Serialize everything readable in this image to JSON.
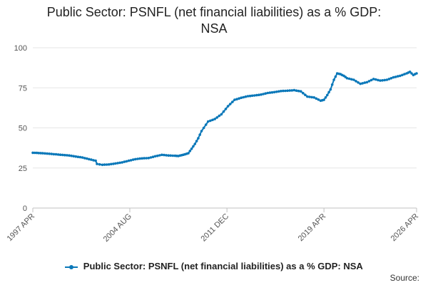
{
  "title_line1": "Public Sector: PSNFL (net financial liabilities) as a % GDP:",
  "title_line2": "NSA",
  "source_label": "Source:",
  "colors": {
    "series": "#0b78b9",
    "grid": "#e6e6e6",
    "axis": "#c0c0c0"
  },
  "chart_data": {
    "type": "line",
    "title": "Public Sector: PSNFL (net financial liabilities) as a % GDP: NSA",
    "xlabel": "",
    "ylabel": "",
    "ylim": [
      0,
      100
    ],
    "yticks": [
      0,
      25,
      50,
      75,
      100
    ],
    "xlim": [
      1997.25,
      2026.25
    ],
    "xticks": [
      {
        "x": 1997.25,
        "label": "1997 APR"
      },
      {
        "x": 2004.58,
        "label": "2004 AUG"
      },
      {
        "x": 2011.92,
        "label": "2011 DEC"
      },
      {
        "x": 2019.25,
        "label": "2019 APR"
      },
      {
        "x": 2026.25,
        "label": "2026 APR"
      }
    ],
    "grid": true,
    "legend": "bottom",
    "series": [
      {
        "name": "Public Sector: PSNFL (net financial liabilities) as a % GDP: NSA",
        "x": [
          1997.25,
          1998.0,
          1999.0,
          2000.0,
          2001.0,
          2002.0,
          2002.1,
          2002.5,
          2003.0,
          2003.5,
          2004.0,
          2004.5,
          2005.0,
          2005.5,
          2006.0,
          2006.5,
          2007.0,
          2007.5,
          2008.0,
          2008.25,
          2008.5,
          2008.75,
          2009.0,
          2009.25,
          2009.5,
          2009.75,
          2010.0,
          2010.5,
          2011.0,
          2011.5,
          2012.0,
          2012.5,
          2013.0,
          2013.5,
          2014.0,
          2014.5,
          2015.0,
          2015.5,
          2016.0,
          2016.5,
          2017.0,
          2017.5,
          2018.0,
          2018.5,
          2019.0,
          2019.25,
          2019.5,
          2019.75,
          2020.0,
          2020.25,
          2020.5,
          2020.75,
          2021.0,
          2021.5,
          2022.0,
          2022.5,
          2023.0,
          2023.5,
          2024.0,
          2024.5,
          2025.0,
          2025.5,
          2025.75,
          2026.0,
          2026.25
        ],
        "values": [
          34.5,
          34.2,
          33.5,
          32.8,
          31.5,
          29.5,
          27.5,
          27.0,
          27.2,
          27.8,
          28.5,
          29.5,
          30.5,
          31.0,
          31.2,
          32.3,
          33.2,
          32.8,
          32.6,
          32.5,
          33.0,
          33.5,
          34.2,
          37.0,
          40.0,
          43.5,
          48.0,
          54.0,
          55.5,
          58.5,
          63.5,
          67.5,
          68.8,
          69.8,
          70.2,
          70.8,
          71.8,
          72.3,
          73.0,
          73.2,
          73.5,
          72.8,
          69.5,
          69.0,
          67.0,
          67.5,
          70.5,
          74.0,
          80.0,
          84.0,
          83.5,
          82.5,
          81.0,
          80.0,
          77.5,
          78.5,
          80.5,
          79.5,
          80.0,
          81.5,
          82.5,
          84.0,
          85.0,
          83.0,
          84.0
        ]
      }
    ]
  }
}
